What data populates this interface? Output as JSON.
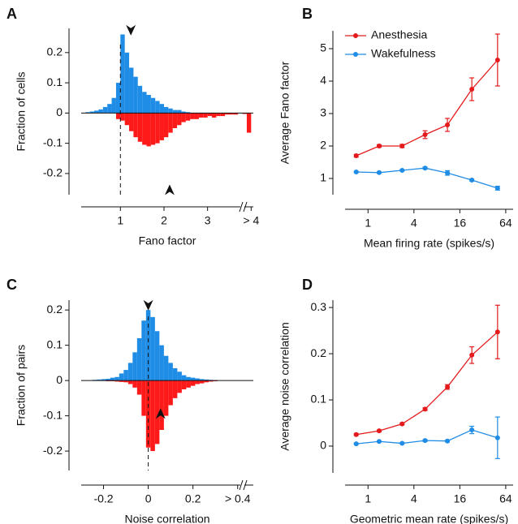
{
  "chart_data": [
    {
      "type": "histogram",
      "panel_label": "A",
      "x_label": "Fano factor",
      "y_label": "Fraction of cells",
      "bins": [
        0.2,
        0.3,
        0.4,
        0.5,
        0.6,
        0.7,
        0.8,
        0.9,
        1.0,
        1.1,
        1.2,
        1.3,
        1.4,
        1.5,
        1.6,
        1.7,
        1.8,
        1.9,
        2.0,
        2.1,
        2.2,
        2.3,
        2.4,
        2.5,
        2.6,
        2.7,
        2.8,
        2.9,
        3.0,
        3.1,
        3.2,
        3.3,
        3.4,
        3.5,
        3.6,
        3.7,
        3.8,
        3.9,
        4.0
      ],
      "series": [
        {
          "color": "#1f8ce6",
          "values": [
            0.003,
            0.005,
            0.008,
            0.012,
            0.02,
            0.03,
            0.05,
            0.1,
            0.26,
            0.2,
            0.15,
            0.12,
            0.09,
            0.07,
            0.06,
            0.05,
            0.04,
            0.03,
            0.02,
            0.015,
            0.01,
            0.01,
            0.005,
            0.003,
            0,
            0,
            0,
            0,
            0,
            0,
            0,
            0,
            0,
            0,
            0,
            0,
            0,
            0
          ]
        },
        {
          "color": "#ff1a1a",
          "values": [
            0,
            0,
            0,
            0,
            0,
            0,
            0,
            -0.02,
            -0.025,
            -0.04,
            -0.06,
            -0.08,
            -0.095,
            -0.105,
            -0.11,
            -0.105,
            -0.1,
            -0.09,
            -0.08,
            -0.065,
            -0.05,
            -0.04,
            -0.03,
            -0.025,
            -0.02,
            -0.02,
            -0.015,
            -0.015,
            -0.01,
            -0.015,
            -0.01,
            -0.01,
            -0.005,
            -0.005,
            -0.005,
            0,
            -0.003,
            -0.065
          ]
        }
      ],
      "xlim": [
        0.1,
        4.05
      ],
      "xticks": [
        1,
        2,
        3,
        {
          "value": 4,
          "label": "> 4"
        }
      ],
      "ylim": [
        -0.27,
        0.28
      ],
      "yticks": [
        0.2,
        0.1,
        0,
        -0.1,
        -0.2
      ],
      "reference_line_x": 1,
      "x_axis_break": true,
      "mean_markers": [
        {
          "x": 1.24,
          "y": 0.27,
          "direction": "down"
        },
        {
          "x": 2.13,
          "y": -0.25,
          "direction": "up"
        }
      ]
    },
    {
      "type": "line",
      "panel_label": "B",
      "x_label": "Mean firing rate (spikes/s)",
      "y_label": "Average Fano factor",
      "x": [
        0.7,
        1.4,
        2.8,
        5.6,
        11,
        23,
        50
      ],
      "x_log": true,
      "series": [
        {
          "name": "Anesthesia",
          "color": "#e41a1c",
          "values": [
            1.7,
            2.0,
            2.0,
            2.35,
            2.65,
            3.75,
            4.65
          ],
          "errors": [
            0.04,
            0.04,
            0.05,
            0.12,
            0.2,
            0.35,
            0.8
          ]
        },
        {
          "name": "Wakefulness",
          "color": "#1f8ce6",
          "values": [
            1.2,
            1.18,
            1.25,
            1.32,
            1.17,
            0.95,
            0.7
          ],
          "errors": [
            0.02,
            0.02,
            0.02,
            0.03,
            0.07,
            0.03,
            0.06
          ]
        }
      ],
      "xlim": [
        0.5,
        80
      ],
      "xticks": [
        1,
        4,
        16,
        64
      ],
      "ylim": [
        0.5,
        5.55
      ],
      "yticks": [
        1,
        2,
        3,
        4,
        5
      ],
      "legend": "upper left"
    },
    {
      "type": "histogram",
      "panel_label": "C",
      "x_label": "Noise correlation",
      "y_label": "Fraction of pairs",
      "bins": [
        -0.25,
        -0.23,
        -0.21,
        -0.19,
        -0.17,
        -0.15,
        -0.13,
        -0.11,
        -0.09,
        -0.07,
        -0.05,
        -0.03,
        -0.01,
        0.01,
        0.03,
        0.05,
        0.07,
        0.09,
        0.11,
        0.13,
        0.15,
        0.17,
        0.19,
        0.21,
        0.23,
        0.25,
        0.27,
        0.29,
        0.31,
        0.33,
        0.35,
        0.37,
        0.39
      ],
      "series": [
        {
          "color": "#1f8ce6",
          "values": [
            0.002,
            0.003,
            0.004,
            0.005,
            0.008,
            0.01,
            0.02,
            0.03,
            0.05,
            0.08,
            0.12,
            0.17,
            0.2,
            0.18,
            0.14,
            0.1,
            0.07,
            0.05,
            0.035,
            0.025,
            0.015,
            0.01,
            0.008,
            0.006,
            0.004,
            0.003,
            0.002,
            0.001,
            0,
            0,
            0,
            0
          ]
        },
        {
          "color": "#ff1a1a",
          "values": [
            -0.001,
            -0.001,
            -0.001,
            -0.002,
            -0.002,
            -0.003,
            -0.004,
            -0.005,
            -0.01,
            -0.02,
            -0.04,
            -0.1,
            -0.19,
            -0.2,
            -0.18,
            -0.14,
            -0.1,
            -0.07,
            -0.05,
            -0.035,
            -0.025,
            -0.02,
            -0.015,
            -0.01,
            -0.008,
            -0.005,
            -0.003,
            -0.002,
            0,
            0,
            0,
            0
          ]
        }
      ],
      "xlim": [
        -0.3,
        0.47
      ],
      "xticks": [
        -0.2,
        0,
        0.2,
        {
          "value": 0.4,
          "label": "> 0.4"
        }
      ],
      "ylim": [
        -0.255,
        0.228
      ],
      "yticks": [
        0.2,
        0.1,
        0,
        -0.1,
        -0.2
      ],
      "reference_line_x": 0,
      "x_axis_break": true,
      "mean_markers": [
        {
          "x": 0,
          "y": 0.21,
          "direction": "down"
        },
        {
          "x": 0.055,
          "y": -0.09,
          "direction": "up"
        }
      ]
    },
    {
      "type": "line",
      "panel_label": "D",
      "x_label": "Geometric mean rate (spikes/s)",
      "y_label": "Average noise correlation",
      "x": [
        0.7,
        1.4,
        2.8,
        5.6,
        11,
        23,
        50
      ],
      "x_log": true,
      "series": [
        {
          "color": "#e41a1c",
          "values": [
            0.025,
            0.033,
            0.048,
            0.08,
            0.128,
            0.197,
            0.247
          ],
          "errors": [
            0.002,
            0.002,
            0.002,
            0.003,
            0.005,
            0.018,
            0.058
          ]
        },
        {
          "color": "#1f8ce6",
          "values": [
            0.005,
            0.01,
            0.006,
            0.012,
            0.011,
            0.035,
            0.018
          ],
          "errors": [
            0.001,
            0.001,
            0.001,
            0.002,
            0.002,
            0.008,
            0.045
          ]
        }
      ],
      "xlim": [
        0.5,
        80
      ],
      "xticks": [
        1,
        4,
        16,
        64
      ],
      "ylim": [
        -0.058,
        0.316
      ],
      "yticks": [
        0,
        0.1,
        0.2,
        0.3
      ]
    }
  ]
}
